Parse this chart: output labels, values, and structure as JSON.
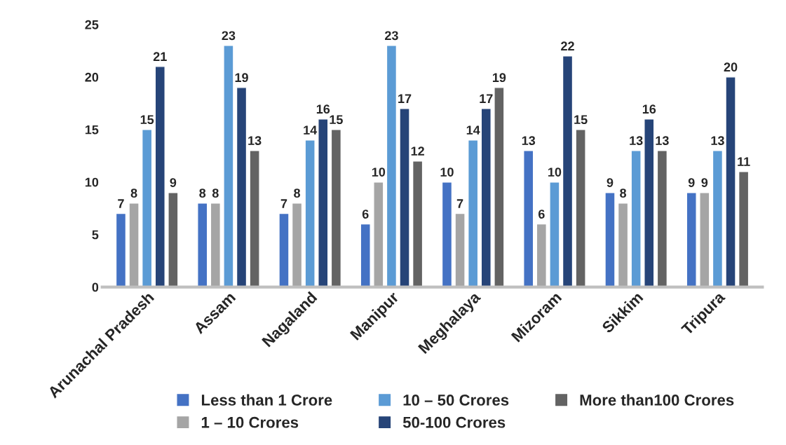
{
  "chart_data": {
    "type": "bar",
    "categories": [
      "Arunachal Pradesh",
      "Assam",
      "Nagaland",
      "Manipur",
      "Meghalaya",
      "Mizoram",
      "Sikkim",
      "Tripura"
    ],
    "series": [
      {
        "name": "Less than 1 Crore",
        "color": "#4472c4",
        "values": [
          7,
          8,
          7,
          6,
          10,
          13,
          9,
          9
        ]
      },
      {
        "name": "1 – 10 Crores",
        "color": "#a5a5a5",
        "values": [
          8,
          8,
          8,
          10,
          7,
          6,
          8,
          9
        ]
      },
      {
        "name": "10 – 50 Crores",
        "color": "#5b9bd5",
        "values": [
          15,
          23,
          14,
          23,
          14,
          10,
          13,
          13
        ]
      },
      {
        "name": "50-100 Crores",
        "color": "#264478",
        "values": [
          21,
          19,
          16,
          17,
          17,
          22,
          16,
          20
        ]
      },
      {
        "name": "More than100 Crores",
        "color": "#636363",
        "values": [
          9,
          13,
          15,
          12,
          19,
          15,
          13,
          11
        ]
      }
    ],
    "ylim": [
      0,
      25
    ],
    "yticks": [
      0,
      5,
      10,
      15,
      20,
      25
    ],
    "grid": false,
    "legend": "bottom",
    "data_labels": true
  }
}
